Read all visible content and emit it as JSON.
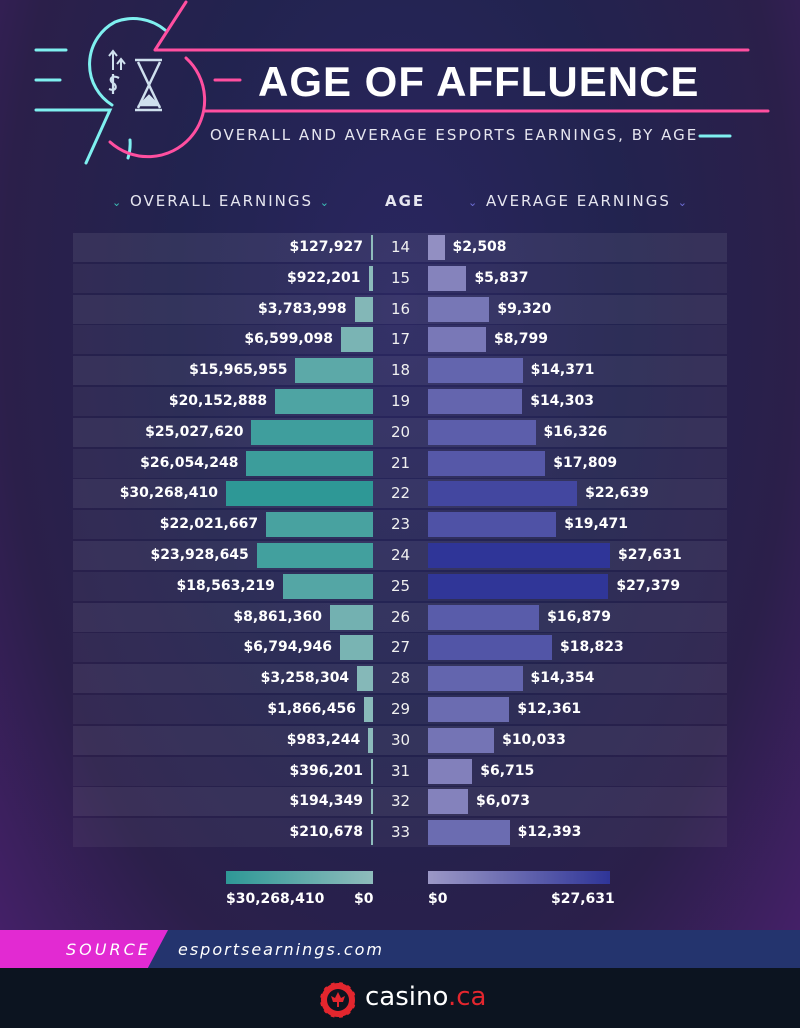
{
  "header": {
    "title": "AGE OF AFFLUENCE",
    "subtitle": "OVERALL AND AVERAGE ESPORTS EARNINGS, BY AGE"
  },
  "columns": {
    "left": "OVERALL EARNINGS",
    "center": "AGE",
    "right": "AVERAGE EARNINGS"
  },
  "colors": {
    "left_max": "#2e9896",
    "left_min": "#8fbcbc",
    "right_max": "#2f3598",
    "right_min": "#9c98c6"
  },
  "chart_data": {
    "type": "bar",
    "orientation": "horizontal-butterfly",
    "categories": [
      "14",
      "15",
      "16",
      "17",
      "18",
      "19",
      "20",
      "21",
      "22",
      "23",
      "24",
      "25",
      "26",
      "27",
      "28",
      "29",
      "30",
      "31",
      "32",
      "33"
    ],
    "series": [
      {
        "name": "OVERALL EARNINGS",
        "values": [
          127927,
          922201,
          3783998,
          6599098,
          15965955,
          20152888,
          25027620,
          26054248,
          30268410,
          22021667,
          23928645,
          18563219,
          8861360,
          6794946,
          3258304,
          1866456,
          983244,
          396201,
          194349,
          210678
        ],
        "labels": [
          "$127,927",
          "$922,201",
          "$3,783,998",
          "$6,599,098",
          "$15,965,955",
          "$20,152,888",
          "$25,027,620",
          "$26,054,248",
          "$30,268,410",
          "$22,021,667",
          "$23,928,645",
          "$18,563,219",
          "$8,861,360",
          "$6,794,946",
          "$3,258,304",
          "$1,866,456",
          "$983,244",
          "$396,201",
          "$194,349",
          "$210,678"
        ]
      },
      {
        "name": "AVERAGE EARNINGS",
        "values": [
          2508,
          5837,
          9320,
          8799,
          14371,
          14303,
          16326,
          17809,
          22639,
          19471,
          27631,
          27379,
          16879,
          18823,
          14354,
          12361,
          10033,
          6715,
          6073,
          12393
        ],
        "labels": [
          "$2,508",
          "$5,837",
          "$9,320",
          "$8,799",
          "$14,371",
          "$14,303",
          "$16,326",
          "$17,809",
          "$22,639",
          "$19,471",
          "$27,631",
          "$27,379",
          "$16,879",
          "$18,823",
          "$14,354",
          "$12,361",
          "$10,033",
          "$6,715",
          "$6,073",
          "$12,393"
        ]
      }
    ],
    "legend": {
      "left_max": "$30,268,410",
      "left_min": "$0",
      "right_min": "$0",
      "right_max": "$27,631"
    }
  },
  "source": {
    "label": "SOURCE",
    "url": "esportsearnings.com"
  },
  "footer": {
    "brand": "casino",
    "tld": ".ca"
  }
}
